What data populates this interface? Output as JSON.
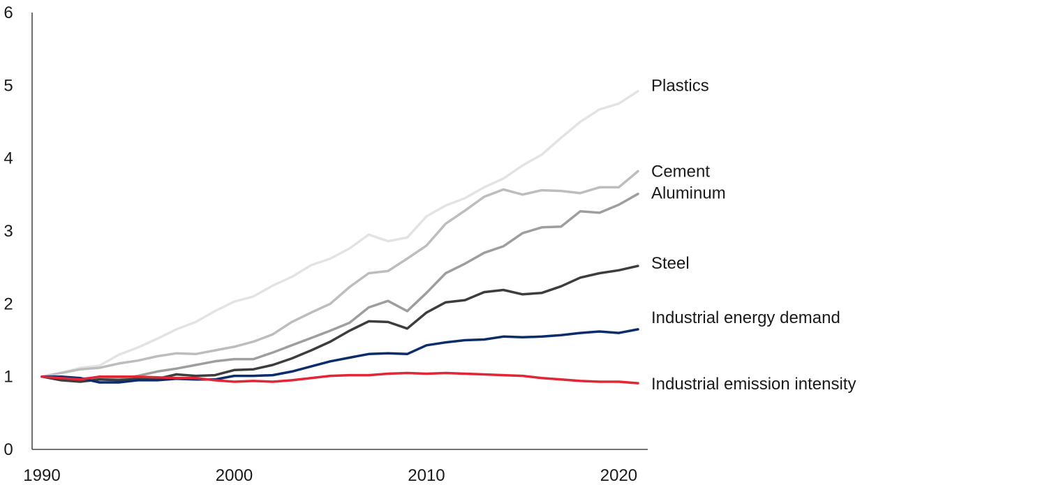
{
  "chart_data": {
    "type": "line",
    "title": "",
    "xlabel": "",
    "ylabel": "",
    "xlim": [
      1990,
      2021
    ],
    "ylim": [
      0,
      6
    ],
    "grid": false,
    "legend": "direct labels at right end of lines",
    "x_ticks": [
      "1990",
      "2000",
      "2010",
      "2020"
    ],
    "y_ticks": [
      "0",
      "1",
      "2",
      "3",
      "4",
      "5",
      "6"
    ],
    "x": [
      1990,
      1991,
      1992,
      1993,
      1994,
      1995,
      1996,
      1997,
      1998,
      1999,
      2000,
      2001,
      2002,
      2003,
      2004,
      2005,
      2006,
      2007,
      2008,
      2009,
      2010,
      2011,
      2012,
      2013,
      2014,
      2015,
      2016,
      2017,
      2018,
      2019,
      2020,
      2021
    ],
    "series": [
      {
        "name": "Plastics",
        "color": "#e3e3e3",
        "values": [
          1.0,
          1.05,
          1.12,
          1.15,
          1.3,
          1.4,
          1.52,
          1.65,
          1.75,
          1.9,
          2.03,
          2.1,
          2.25,
          2.37,
          2.53,
          2.62,
          2.76,
          2.95,
          2.86,
          2.91,
          3.2,
          3.35,
          3.45,
          3.6,
          3.72,
          3.9,
          4.05,
          4.28,
          4.5,
          4.67,
          4.75,
          4.92
        ]
      },
      {
        "name": "Cement",
        "color": "#bdbdbd",
        "values": [
          1.0,
          1.05,
          1.1,
          1.12,
          1.18,
          1.22,
          1.28,
          1.32,
          1.31,
          1.36,
          1.41,
          1.48,
          1.58,
          1.75,
          1.88,
          2.0,
          2.23,
          2.42,
          2.45,
          2.62,
          2.8,
          3.1,
          3.28,
          3.47,
          3.57,
          3.5,
          3.56,
          3.55,
          3.52,
          3.6,
          3.6,
          3.82
        ]
      },
      {
        "name": "Aluminum",
        "color": "#9e9e9e",
        "values": [
          1.0,
          1.0,
          0.97,
          0.99,
          0.97,
          1.01,
          1.07,
          1.11,
          1.16,
          1.21,
          1.24,
          1.24,
          1.33,
          1.43,
          1.53,
          1.63,
          1.74,
          1.95,
          2.04,
          1.9,
          2.15,
          2.42,
          2.55,
          2.7,
          2.79,
          2.97,
          3.05,
          3.06,
          3.27,
          3.25,
          3.36,
          3.51
        ]
      },
      {
        "name": "Steel",
        "color": "#3d3d3d",
        "values": [
          1.0,
          0.95,
          0.93,
          0.96,
          0.95,
          0.97,
          0.97,
          1.03,
          1.01,
          1.02,
          1.09,
          1.1,
          1.16,
          1.25,
          1.36,
          1.48,
          1.63,
          1.76,
          1.75,
          1.66,
          1.88,
          2.02,
          2.05,
          2.16,
          2.19,
          2.13,
          2.15,
          2.24,
          2.36,
          2.42,
          2.46,
          2.52
        ]
      },
      {
        "name": "Industrial energy demand",
        "color": "#0b2d6b",
        "values": [
          1.0,
          1.0,
          0.98,
          0.92,
          0.92,
          0.95,
          0.95,
          0.97,
          0.96,
          0.96,
          1.01,
          1.01,
          1.02,
          1.07,
          1.14,
          1.21,
          1.26,
          1.31,
          1.32,
          1.31,
          1.43,
          1.47,
          1.5,
          1.51,
          1.55,
          1.54,
          1.55,
          1.57,
          1.6,
          1.62,
          1.6,
          1.65
        ]
      },
      {
        "name": "Industrial emission intensity",
        "color": "#e32636",
        "values": [
          1.0,
          0.98,
          0.96,
          1.0,
          1.0,
          1.0,
          0.99,
          0.98,
          0.98,
          0.95,
          0.93,
          0.94,
          0.93,
          0.95,
          0.98,
          1.01,
          1.02,
          1.02,
          1.04,
          1.05,
          1.04,
          1.05,
          1.04,
          1.03,
          1.02,
          1.01,
          0.98,
          0.96,
          0.94,
          0.93,
          0.93,
          0.91
        ]
      }
    ]
  }
}
